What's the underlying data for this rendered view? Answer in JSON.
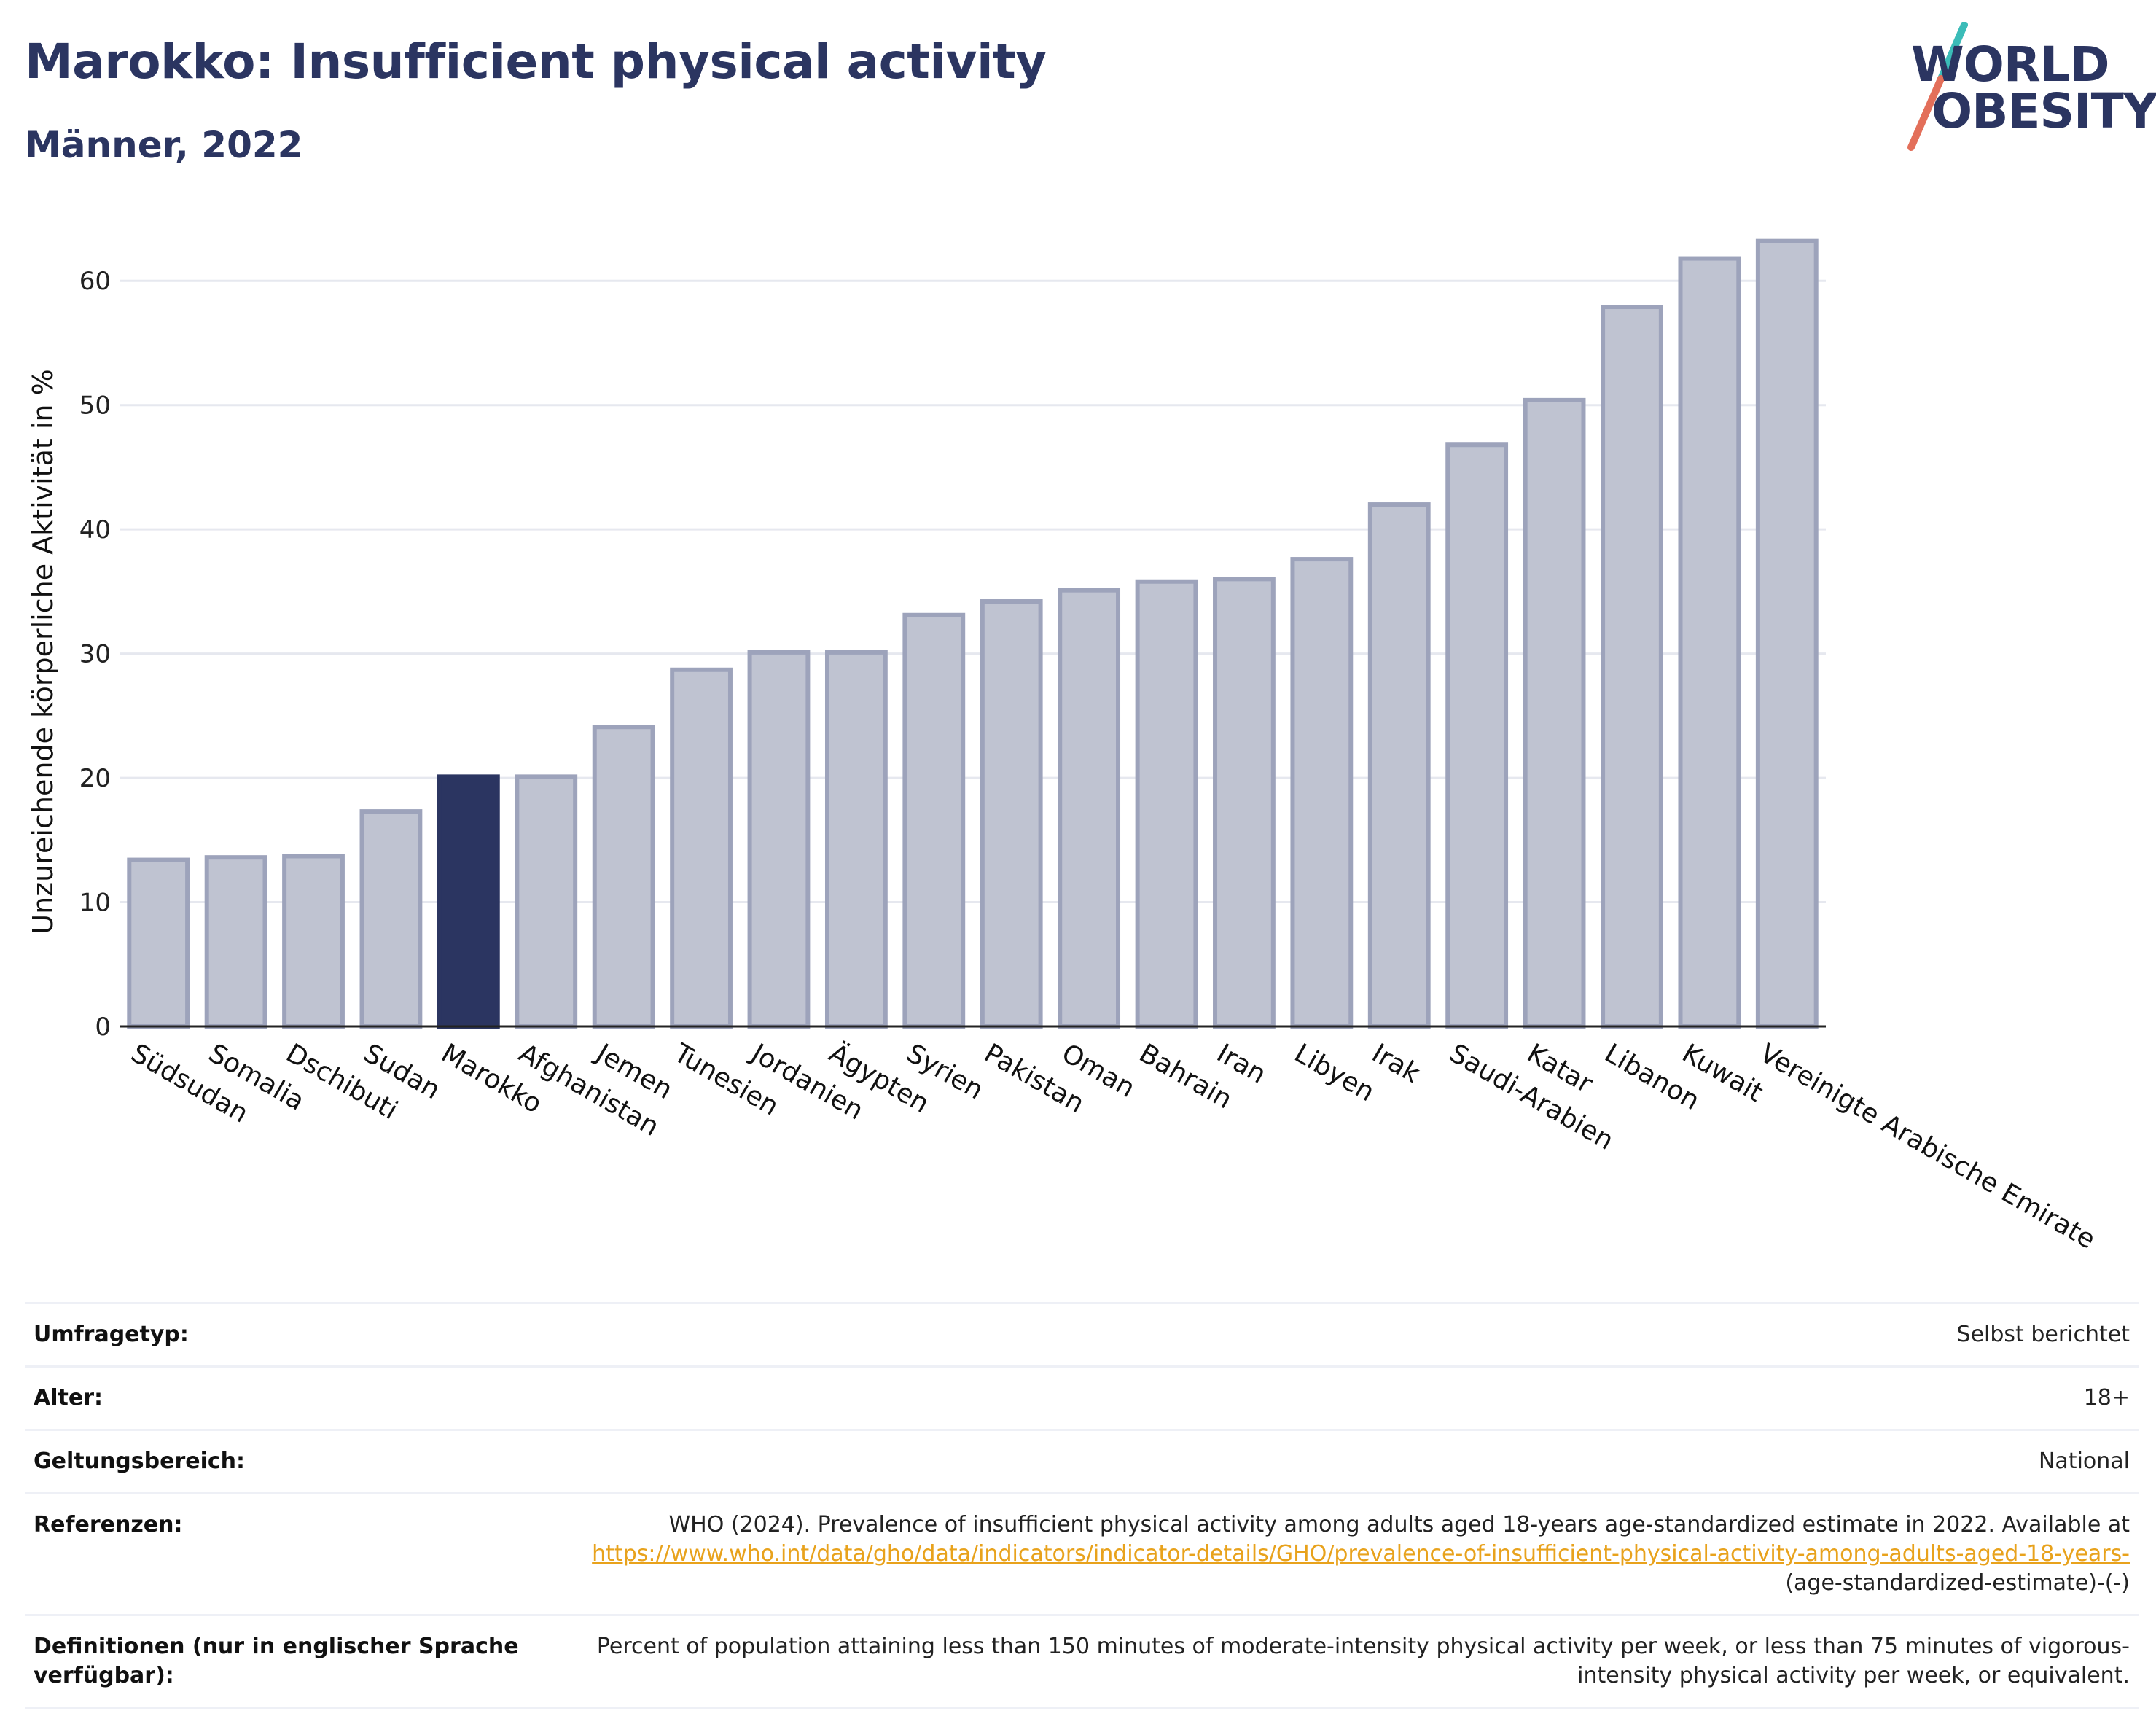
{
  "header": {
    "title": "Marokko: Insufficient physical activity",
    "subtitle": "Männer, 2022"
  },
  "logo": {
    "line1": "WORLD",
    "line2": "OBESITY",
    "colors": {
      "text": "#2b3561",
      "slash_top": "#3bbcb8",
      "slash_bottom": "#e36f5a"
    }
  },
  "chart_data": {
    "type": "bar",
    "ylabel": "Unzureichende körperliche Aktivität in %",
    "xlabel": "",
    "ylim": [
      0,
      65
    ],
    "yticks": [
      0,
      10,
      20,
      30,
      40,
      50,
      60
    ],
    "grid": true,
    "highlight": "Marokko",
    "colors": {
      "bar": "#bfc3d1",
      "bar_border": "#9da3bb",
      "highlight": "#2b3561",
      "grid": "#e6e8ef"
    },
    "categories": [
      "Südsudan",
      "Somalia",
      "Dschibuti",
      "Sudan",
      "Marokko",
      "Afghanistan",
      "Jemen",
      "Tunesien",
      "Jordanien",
      "Ägypten",
      "Syrien",
      "Pakistan",
      "Oman",
      "Bahrain",
      "Iran",
      "Libyen",
      "Irak",
      "Saudi-Arabien",
      "Katar",
      "Libanon",
      "Kuwait",
      "Vereinigte Arabische Emirate"
    ],
    "values": [
      13.4,
      13.6,
      13.7,
      17.3,
      20.1,
      20.1,
      24.1,
      28.7,
      30.1,
      30.1,
      33.1,
      34.2,
      35.1,
      35.8,
      36.0,
      37.6,
      42.0,
      46.8,
      50.4,
      57.9,
      61.8,
      63.2
    ]
  },
  "info": {
    "survey_type": {
      "label": "Umfragetyp:",
      "value": "Selbst berichtet"
    },
    "age": {
      "label": "Alter:",
      "value": "18+"
    },
    "scope": {
      "label": "Geltungsbereich:",
      "value": "National"
    },
    "references": {
      "label": "Referenzen:",
      "text": "WHO (2024). Prevalence of insufficient physical activity among adults aged 18-years age-standardized estimate in 2022. Available at",
      "link": "https://www.who.int/data/gho/data/indicators/indicator-details/GHO/prevalence-of-insufficient-physical-activity-among-adults-aged-18-years-",
      "suffix": "(age-standardized-estimate)-(-)"
    },
    "definitions": {
      "label": "Definitionen (nur in englischer Sprache verfügbar):",
      "value": "Percent of population attaining less than 150 minutes of moderate-intensity physical activity per week, or less than 75 minutes of vigorous-intensity physical activity per week, or equivalent."
    }
  }
}
